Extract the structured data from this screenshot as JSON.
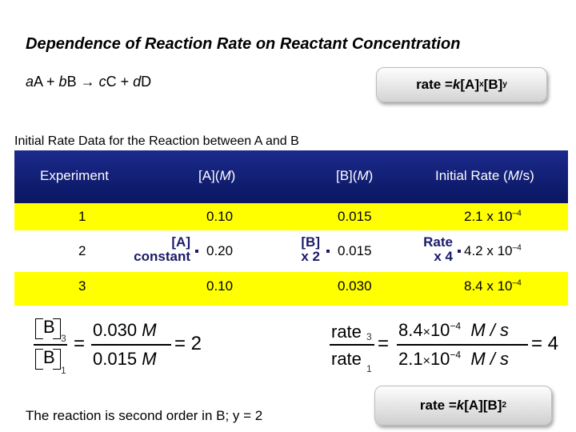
{
  "title": "Dependence of Reaction Rate on Reactant Concentration",
  "general_equation": {
    "a": "a",
    "A": "A + ",
    "b": "b",
    "B": "B → ",
    "c": "c",
    "C": "C + ",
    "d": "d",
    "D": "D"
  },
  "rate_law": {
    "prefix": "rate = ",
    "k": "k",
    "mid": "[A]",
    "x": "x",
    "b": "[B]",
    "y": "y"
  },
  "table": {
    "caption": "Initial Rate Data for the Reaction between A and B",
    "headers": {
      "experiment": "Experiment",
      "a_conc_pre": "[A](",
      "a_conc_unit": "M",
      "a_conc_post": ")",
      "b_conc_pre": "[B](",
      "b_conc_unit": "M",
      "b_conc_post": ")",
      "rate_pre": "Initial Rate (",
      "rate_unit": "M",
      "rate_post": "/s)"
    },
    "rows": [
      {
        "experiment": "1",
        "a": "0.10",
        "b": "0.015",
        "rate_base": "2.1 x 10",
        "rate_exp": "–4"
      },
      {
        "experiment": "2",
        "a": "0.20",
        "b": "0.015",
        "rate_base": "4.2 x 10",
        "rate_exp": "–4"
      },
      {
        "experiment": "3",
        "a": "0.10",
        "b": "0.030",
        "rate_base": "8.4 x 10",
        "rate_exp": "–4"
      }
    ],
    "notes": {
      "a_line1": "[A]",
      "a_line2": "constant",
      "b_line1": "[B]",
      "b_line2": "x 2",
      "rate_line1": "Rate",
      "rate_line2": "x 4"
    }
  },
  "calc_left": {
    "num_label": "B",
    "num_sub": "3",
    "den_label": "B",
    "den_sub": "1",
    "num_val": "0.030",
    "den_val": "0.015",
    "unit": "M",
    "result": "= 2",
    "eq": "="
  },
  "calc_right": {
    "num_label": "rate",
    "num_sub": "3",
    "den_label": "rate",
    "den_sub": "1",
    "num_coef": "8.4",
    "den_coef": "2.1",
    "times": "×",
    "ten": "10",
    "exp": "−4",
    "unit": "M / s",
    "eq": "=",
    "result": "= 4"
  },
  "conclusion": "The reaction is second order in B; y = 2",
  "final_rate": {
    "prefix": "rate = ",
    "k": "k",
    "body": "[A][B]",
    "exp": "2"
  }
}
